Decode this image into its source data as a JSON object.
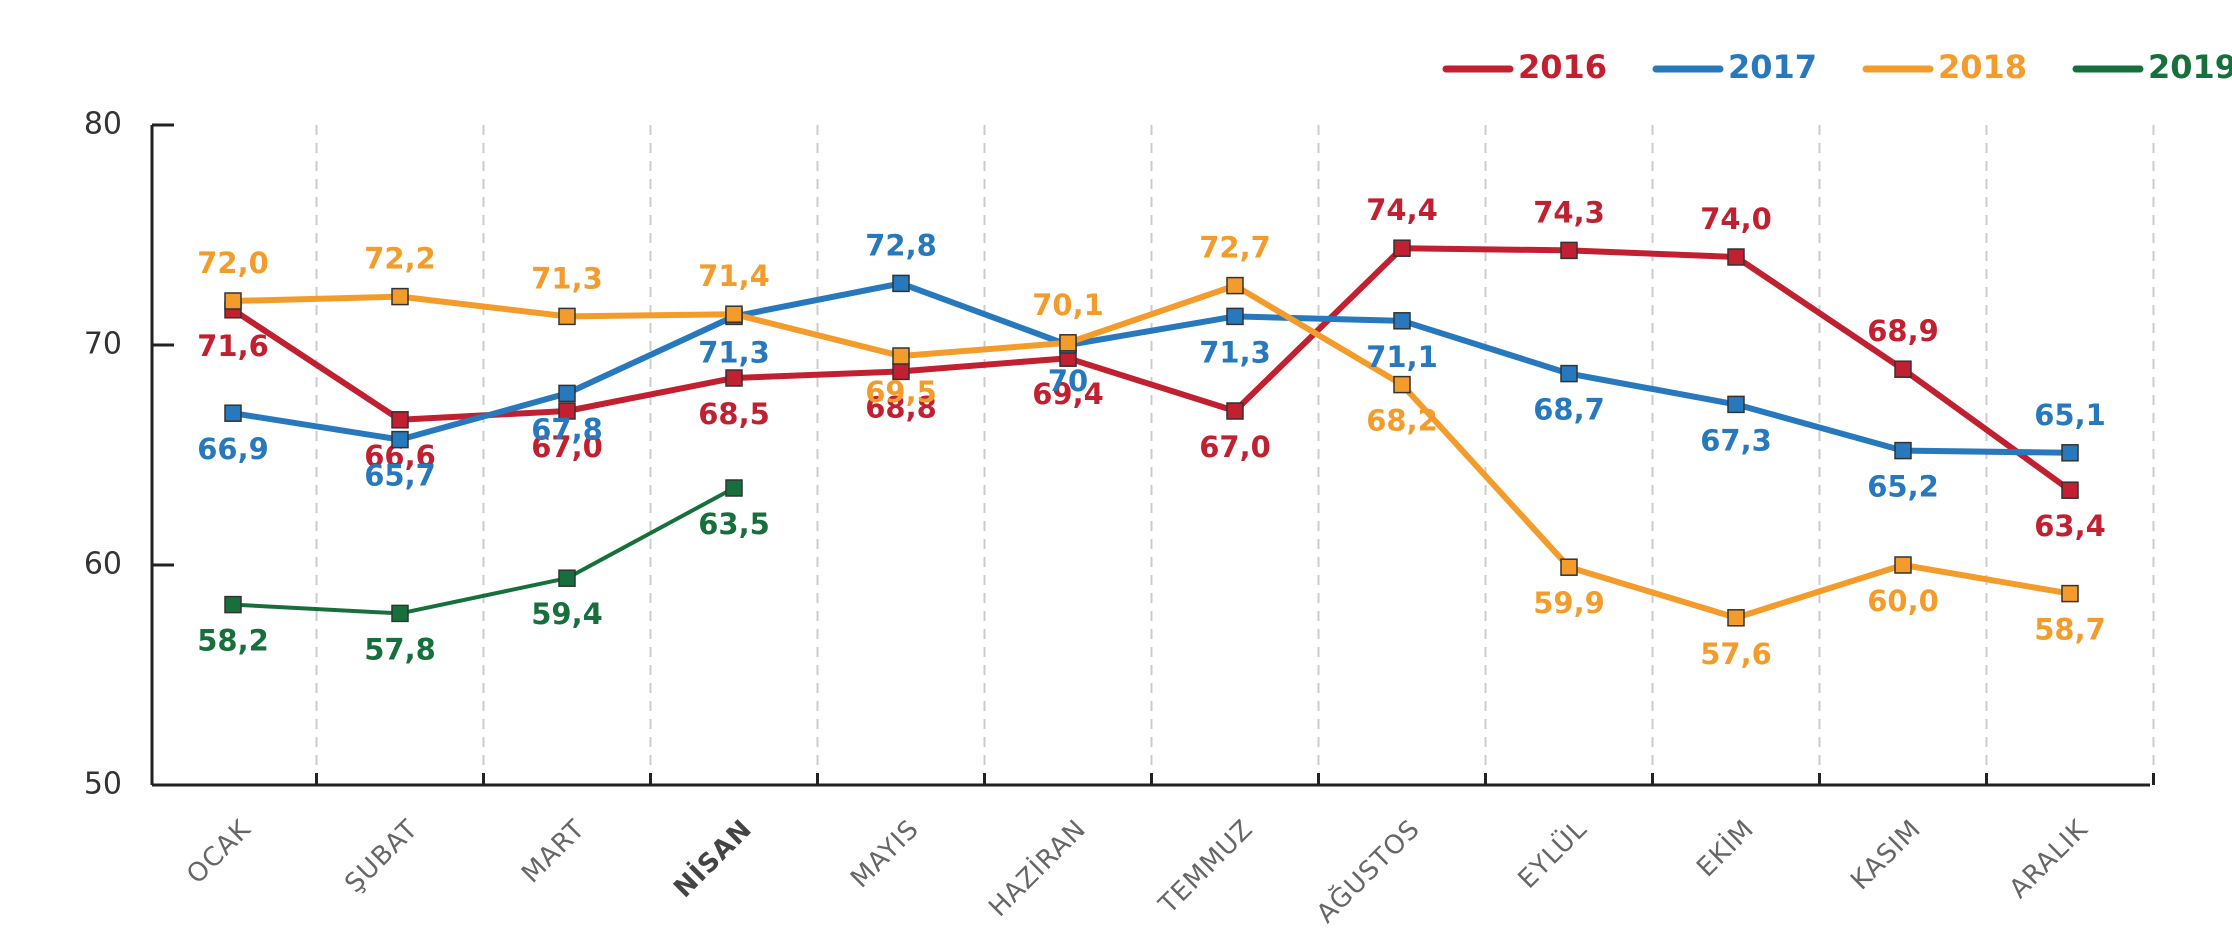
{
  "chart_data": {
    "type": "line",
    "categories": [
      "OCAK",
      "ŞUBAT",
      "MART",
      "NİSAN",
      "MAYIS",
      "HAZİRAN",
      "TEMMUZ",
      "AĞUSTOS",
      "EYLÜL",
      "EKİM",
      "KASIM",
      "ARALIK"
    ],
    "bold_categories": [
      3
    ],
    "series": [
      {
        "name": "2016",
        "color": "#c0202f",
        "values": [
          71.6,
          66.6,
          67.0,
          68.5,
          68.8,
          69.4,
          67.0,
          74.4,
          74.3,
          74.0,
          68.9,
          63.4
        ],
        "value_labels": [
          "71,6",
          "66,6",
          "67,0",
          "68,5",
          "68,8",
          "69,4",
          "67,0",
          "74,4",
          "74,3",
          "74,0",
          "68,9",
          "63,4"
        ]
      },
      {
        "name": "2017",
        "color": "#2878bd",
        "values": [
          66.9,
          65.7,
          67.8,
          71.3,
          72.8,
          70,
          71.3,
          71.1,
          68.7,
          67.3,
          65.2,
          65.1
        ],
        "value_labels": [
          "66,9",
          "65,7",
          "67,8",
          "71,3",
          "72,8",
          "70",
          "71,3",
          "71,1",
          "68,7",
          "67,3",
          "65,2",
          "65,1"
        ]
      },
      {
        "name": "2018",
        "color": "#f39c2b",
        "values": [
          72.0,
          72.2,
          71.3,
          71.4,
          69.5,
          70.1,
          72.7,
          68.2,
          59.9,
          57.6,
          60.0,
          58.7
        ],
        "value_labels": [
          "72,0",
          "72,2",
          "71,3",
          "71,4",
          "69,5",
          "70,1",
          "72,7",
          "68,2",
          "59,9",
          "57,6",
          "60,0",
          "58,7"
        ]
      },
      {
        "name": "2019",
        "color": "#17703c",
        "values": [
          58.2,
          57.8,
          59.4,
          63.5,
          null,
          null,
          null,
          null,
          null,
          null,
          null,
          null
        ],
        "value_labels": [
          "58,2",
          "57,8",
          "59,4",
          "63,5",
          null,
          null,
          null,
          null,
          null,
          null,
          null,
          null
        ]
      }
    ],
    "ylim": [
      50,
      80
    ],
    "yticks": [
      50,
      60,
      70,
      80
    ],
    "grid": true,
    "legend": "top-right"
  }
}
